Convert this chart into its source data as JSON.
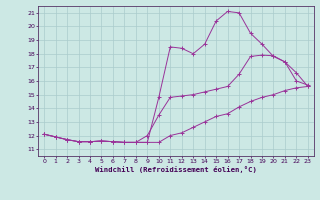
{
  "xlabel": "Windchill (Refroidissement éolien,°C)",
  "background_color": "#cce8e4",
  "grid_color": "#aacccc",
  "line_color": "#993399",
  "xlim": [
    -0.5,
    23.5
  ],
  "ylim": [
    10.5,
    21.5
  ],
  "xticks": [
    0,
    1,
    2,
    3,
    4,
    5,
    6,
    7,
    8,
    9,
    10,
    11,
    12,
    13,
    14,
    15,
    16,
    17,
    18,
    19,
    20,
    21,
    22,
    23
  ],
  "yticks": [
    11,
    12,
    13,
    14,
    15,
    16,
    17,
    18,
    19,
    20,
    21
  ],
  "line1_x": [
    0,
    1,
    2,
    3,
    4,
    5,
    6,
    7,
    8,
    9,
    10,
    11,
    12,
    13,
    14,
    15,
    16,
    17,
    18,
    19,
    20,
    21,
    22,
    23
  ],
  "line1_y": [
    12.1,
    11.9,
    11.7,
    11.55,
    11.55,
    11.6,
    11.55,
    11.5,
    11.5,
    11.5,
    14.8,
    18.5,
    18.4,
    18.0,
    18.7,
    20.4,
    21.1,
    21.0,
    19.5,
    18.7,
    17.8,
    17.4,
    16.6,
    15.6
  ],
  "line2_x": [
    0,
    1,
    2,
    3,
    4,
    5,
    6,
    7,
    8,
    9,
    10,
    11,
    12,
    13,
    14,
    15,
    16,
    17,
    18,
    19,
    20,
    21,
    22,
    23
  ],
  "line2_y": [
    12.1,
    11.9,
    11.7,
    11.55,
    11.55,
    11.6,
    11.55,
    11.5,
    11.5,
    12.0,
    13.5,
    14.8,
    14.9,
    15.0,
    15.2,
    15.4,
    15.6,
    16.5,
    17.8,
    17.9,
    17.85,
    17.4,
    16.0,
    15.7
  ],
  "line3_x": [
    0,
    1,
    2,
    3,
    4,
    5,
    6,
    7,
    8,
    9,
    10,
    11,
    12,
    13,
    14,
    15,
    16,
    17,
    18,
    19,
    20,
    21,
    22,
    23
  ],
  "line3_y": [
    12.1,
    11.9,
    11.7,
    11.55,
    11.55,
    11.6,
    11.55,
    11.5,
    11.5,
    11.5,
    11.5,
    12.0,
    12.2,
    12.6,
    13.0,
    13.4,
    13.6,
    14.1,
    14.5,
    14.8,
    15.0,
    15.3,
    15.5,
    15.6
  ]
}
